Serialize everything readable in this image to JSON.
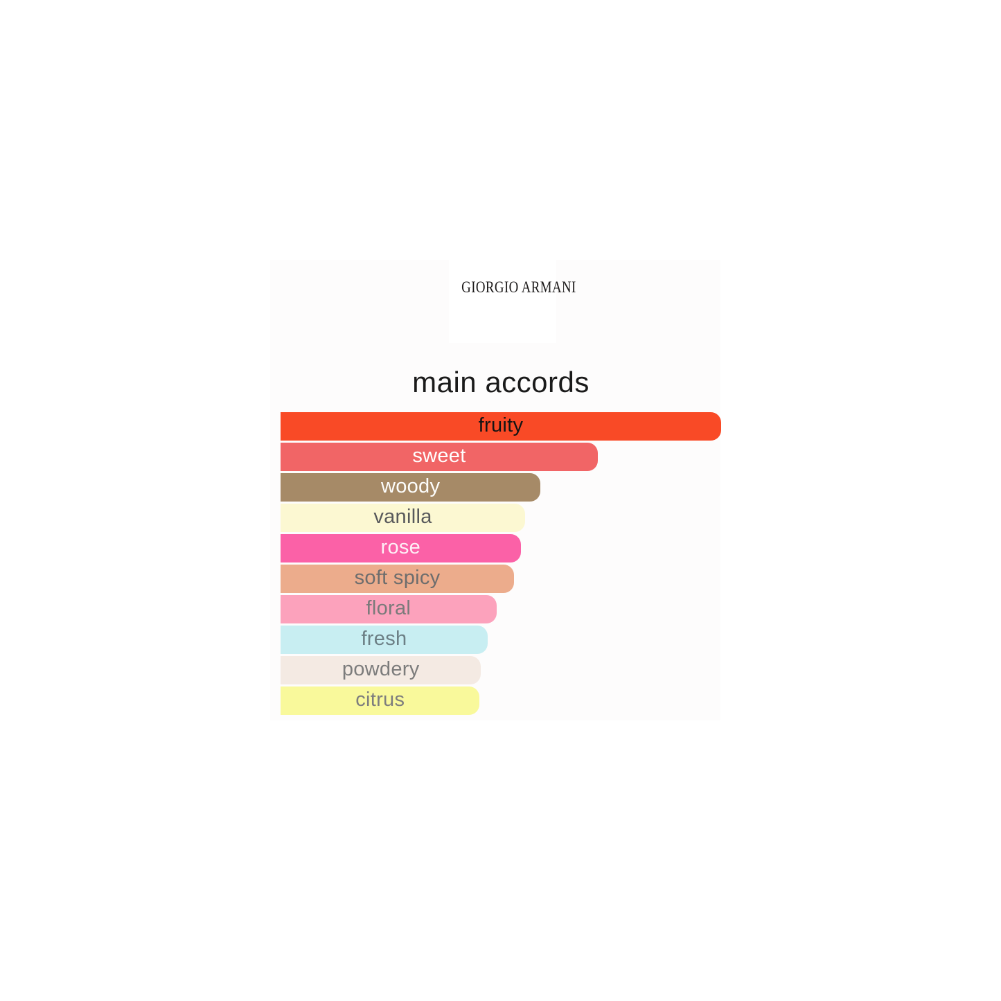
{
  "brand": {
    "logo_text": "GIORGIO ARMANI"
  },
  "chart_data": {
    "type": "bar",
    "orientation": "horizontal",
    "title": "main accords",
    "xlabel": "",
    "ylabel": "",
    "xlim": [
      0,
      100
    ],
    "grid": false,
    "legend": false,
    "value_unit": "percent of strongest accord",
    "categories": [
      "fruity",
      "sweet",
      "woody",
      "vanilla",
      "rose",
      "soft spicy",
      "floral",
      "fresh",
      "powdery",
      "citrus"
    ],
    "values": [
      100,
      72,
      59,
      55.5,
      54.5,
      53,
      49,
      47,
      45.5,
      45.2
    ],
    "bars": [
      {
        "label": "fruity",
        "value_pct": 100,
        "color": "#f94a26",
        "text_color": "#141414"
      },
      {
        "label": "sweet",
        "value_pct": 72,
        "color": "#f16566",
        "text_color": "#ffffff"
      },
      {
        "label": "woody",
        "value_pct": 59,
        "color": "#a68a67",
        "text_color": "#fdfdfb"
      },
      {
        "label": "vanilla",
        "value_pct": 55.5,
        "color": "#fcf8d2",
        "text_color": "#58595b"
      },
      {
        "label": "rose",
        "value_pct": 54.5,
        "color": "#fb61a7",
        "text_color": "#feeff6"
      },
      {
        "label": "soft spicy",
        "value_pct": 53,
        "color": "#ecac8c",
        "text_color": "#6d6d6d"
      },
      {
        "label": "floral",
        "value_pct": 49,
        "color": "#fca2bc",
        "text_color": "#7a7a7a"
      },
      {
        "label": "fresh",
        "value_pct": 47,
        "color": "#c8eef2",
        "text_color": "#6c7f85"
      },
      {
        "label": "powdery",
        "value_pct": 45.5,
        "color": "#f4eae3",
        "text_color": "#7c7c7c"
      },
      {
        "label": "citrus",
        "value_pct": 45.2,
        "color": "#f9f99b",
        "text_color": "#7e7e7e"
      }
    ]
  }
}
